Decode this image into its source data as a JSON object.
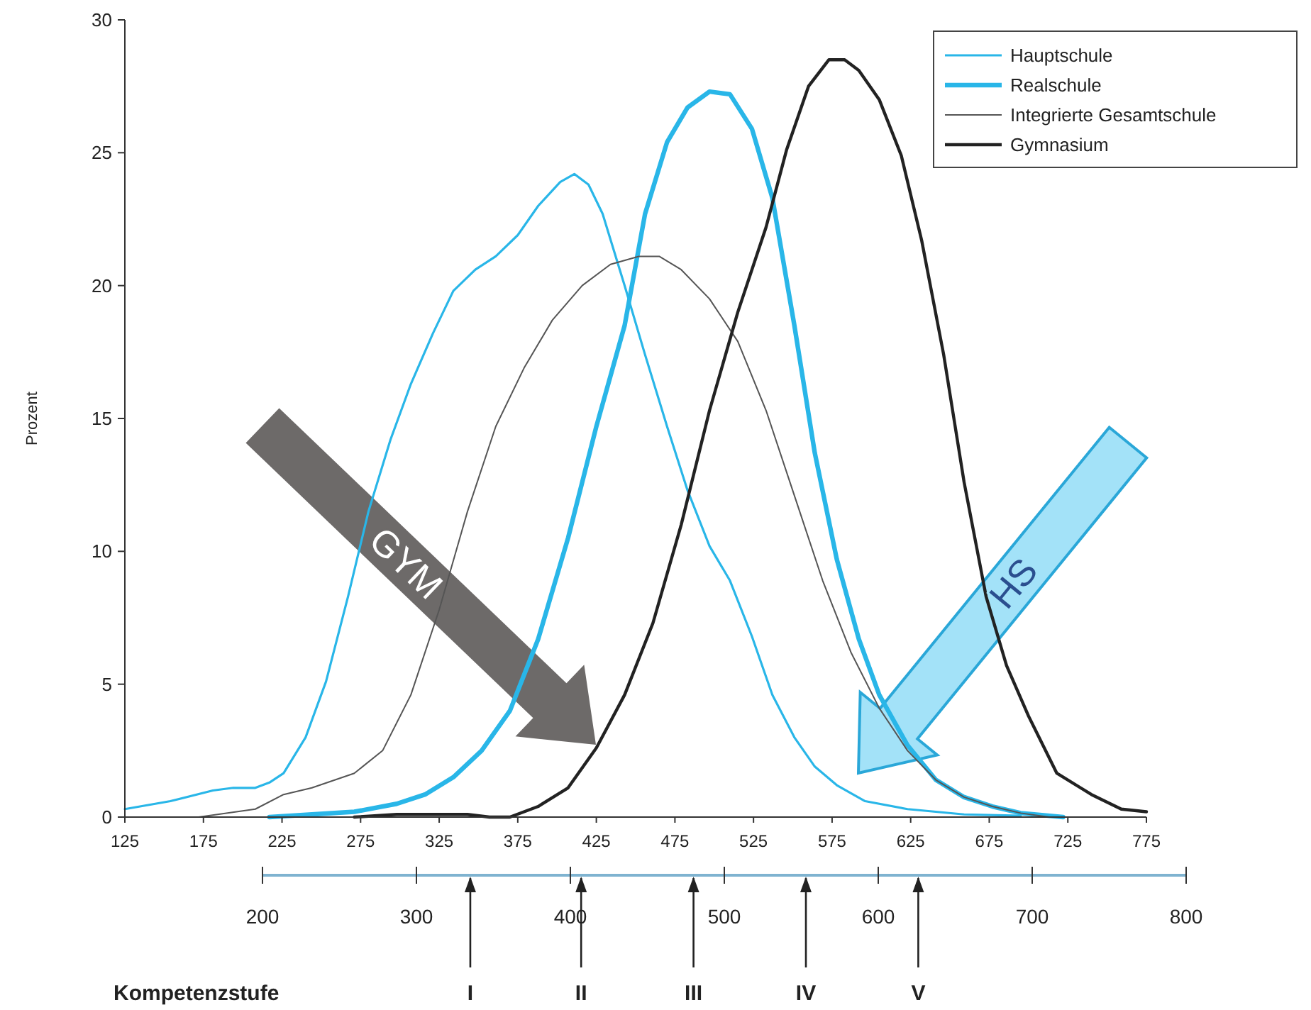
{
  "chart_data": {
    "type": "line",
    "ylabel": "Prozent",
    "xlim": [
      125,
      775
    ],
    "xticks": [
      125,
      175,
      225,
      275,
      325,
      375,
      425,
      475,
      525,
      575,
      625,
      675,
      725,
      775
    ],
    "ylim": [
      0,
      30
    ],
    "yticks": [
      0,
      5,
      10,
      15,
      20,
      25,
      30
    ],
    "x2lim": [
      200,
      800
    ],
    "x2ticks": [
      200,
      300,
      400,
      500,
      600,
      700,
      800
    ],
    "legend": "top right",
    "grid": false,
    "marker": "none",
    "series": [
      {
        "name": "Hauptschule",
        "color": "#29b6e8",
        "x": [
          125,
          154,
          181,
          194,
          208,
          217,
          226,
          240,
          253,
          267,
          280,
          294,
          307,
          321,
          334,
          348,
          361,
          375,
          388,
          402,
          411,
          420,
          429,
          443,
          456,
          470,
          483,
          497,
          510,
          524,
          537,
          551,
          564,
          578,
          596,
          623,
          659,
          695
        ],
        "values": [
          0.3,
          0.6,
          1,
          1.1,
          1.1,
          1.3,
          1.65,
          3,
          5.1,
          8.3,
          11.5,
          14.2,
          16.3,
          18.2,
          19.8,
          20.6,
          21.1,
          21.9,
          23,
          23.9,
          24.2,
          23.8,
          22.7,
          20,
          17.4,
          14.7,
          12.3,
          10.2,
          8.9,
          6.8,
          4.6,
          3,
          1.9,
          1.2,
          0.6,
          0.3,
          0.1,
          0.05
        ]
      },
      {
        "name": "Realschule",
        "color": "#29b6e8",
        "x": [
          217,
          271,
          298,
          316,
          334,
          352,
          370,
          388,
          407,
          425,
          443,
          456,
          470,
          483,
          497,
          510,
          524,
          537,
          551,
          564,
          578,
          592,
          605,
          623,
          641,
          659,
          677,
          695,
          722
        ],
        "values": [
          0,
          0.2,
          0.5,
          0.85,
          1.5,
          2.5,
          4,
          6.7,
          10.5,
          14.7,
          18.5,
          22.7,
          25.4,
          26.7,
          27.3,
          27.2,
          25.9,
          23.3,
          18.5,
          13.7,
          9.7,
          6.7,
          4.6,
          2.7,
          1.4,
          0.75,
          0.4,
          0.15,
          0
        ]
      },
      {
        "name": "Integrierte Gesamtschule",
        "color": "#555555",
        "x": [
          172,
          208,
          226,
          244,
          271,
          289,
          307,
          325,
          343,
          361,
          379,
          397,
          416,
          434,
          452,
          465,
          479,
          497,
          515,
          533,
          551,
          569,
          587,
          605,
          623,
          641,
          659,
          677,
          695,
          713
        ],
        "values": [
          0,
          0.3,
          0.85,
          1.1,
          1.65,
          2.5,
          4.6,
          7.8,
          11.5,
          14.7,
          16.9,
          18.7,
          20,
          20.8,
          21.1,
          21.1,
          20.6,
          19.5,
          17.9,
          15.3,
          12.1,
          8.9,
          6.2,
          4.1,
          2.5,
          1.4,
          0.75,
          0.4,
          0.15,
          0
        ]
      },
      {
        "name": "Gymnasium",
        "color": "#222222",
        "x": [
          271,
          298,
          343,
          357,
          370,
          388,
          407,
          425,
          443,
          461,
          479,
          497,
          515,
          533,
          546,
          560,
          573,
          583,
          592,
          605,
          619,
          632,
          646,
          659,
          673,
          686,
          700,
          718,
          740,
          759,
          775
        ],
        "values": [
          0,
          0.1,
          0.1,
          0,
          0,
          0.4,
          1.1,
          2.6,
          4.6,
          7.3,
          11,
          15.3,
          19,
          22.2,
          25.1,
          27.5,
          28.5,
          28.5,
          28.1,
          27,
          24.9,
          21.7,
          17.4,
          12.6,
          8.3,
          5.7,
          3.8,
          1.65,
          0.85,
          0.3,
          0.2
        ]
      }
    ],
    "ref_lines": [
      {
        "axis": "x2",
        "value": 335,
        "label": "I"
      },
      {
        "axis": "x2",
        "value": 407,
        "label": "II"
      },
      {
        "axis": "x2",
        "value": 480,
        "label": "III"
      },
      {
        "axis": "x2",
        "value": 553,
        "label": "IV"
      },
      {
        "axis": "x2",
        "value": 626,
        "label": "V"
      }
    ],
    "annotations": [
      "Kompetenzstufe",
      "GYM",
      "HS"
    ]
  }
}
